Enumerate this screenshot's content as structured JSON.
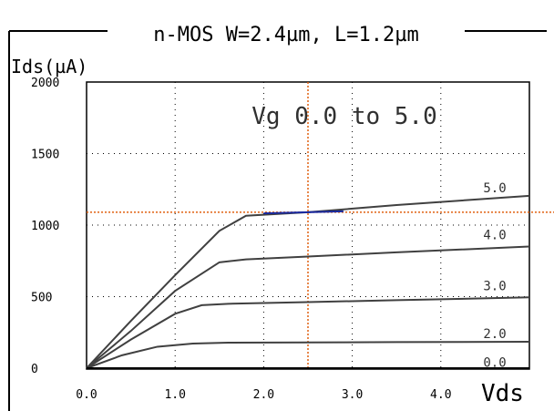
{
  "chart_data": {
    "type": "line",
    "title": "n-MOS W=2.4µm, L=1.2µm",
    "ylabel": "Ids(µA)",
    "xlabel": "Vds",
    "annotation": "Vg 0.0 to 5.0",
    "xlim": [
      0,
      5.0
    ],
    "ylim": [
      0,
      2000
    ],
    "x_ticks": [
      "0.0",
      "1.0",
      "2.0",
      "3.0",
      "4.0"
    ],
    "y_ticks": [
      "0",
      "500",
      "1000",
      "1500",
      "2000"
    ],
    "grid": true,
    "cursor": {
      "x": 2.5,
      "y": 1090
    },
    "colors": {
      "axis": "#000000",
      "grid": "#000000",
      "curves": "#404040",
      "cursor": "#e06010",
      "highlight": "#1a2aa0"
    },
    "series": [
      {
        "label": "0.0",
        "label_y": 10,
        "points": [
          [
            0,
            0
          ],
          [
            5.0,
            0
          ]
        ]
      },
      {
        "label": "2.0",
        "label_y": 210,
        "points": [
          [
            0,
            0
          ],
          [
            0.4,
            90
          ],
          [
            0.8,
            150
          ],
          [
            1.2,
            172
          ],
          [
            1.6,
            178
          ],
          [
            2.5,
            180
          ],
          [
            3.5,
            182
          ],
          [
            5.0,
            185
          ]
        ]
      },
      {
        "label": "3.0",
        "label_y": 545,
        "points": [
          [
            0,
            0
          ],
          [
            0.5,
            200
          ],
          [
            1.0,
            380
          ],
          [
            1.3,
            440
          ],
          [
            1.6,
            450
          ],
          [
            2.5,
            462
          ],
          [
            3.5,
            475
          ],
          [
            5.0,
            495
          ]
        ]
      },
      {
        "label": "4.0",
        "label_y": 900,
        "points": [
          [
            0,
            0
          ],
          [
            0.5,
            260
          ],
          [
            1.0,
            540
          ],
          [
            1.5,
            740
          ],
          [
            1.8,
            760
          ],
          [
            2.5,
            780
          ],
          [
            3.5,
            810
          ],
          [
            5.0,
            850
          ]
        ]
      },
      {
        "label": "5.0",
        "label_y": 1230,
        "points": [
          [
            0,
            0
          ],
          [
            0.5,
            330
          ],
          [
            1.0,
            650
          ],
          [
            1.5,
            960
          ],
          [
            1.8,
            1065
          ],
          [
            2.5,
            1090
          ],
          [
            3.5,
            1140
          ],
          [
            5.0,
            1205
          ]
        ]
      }
    ]
  }
}
